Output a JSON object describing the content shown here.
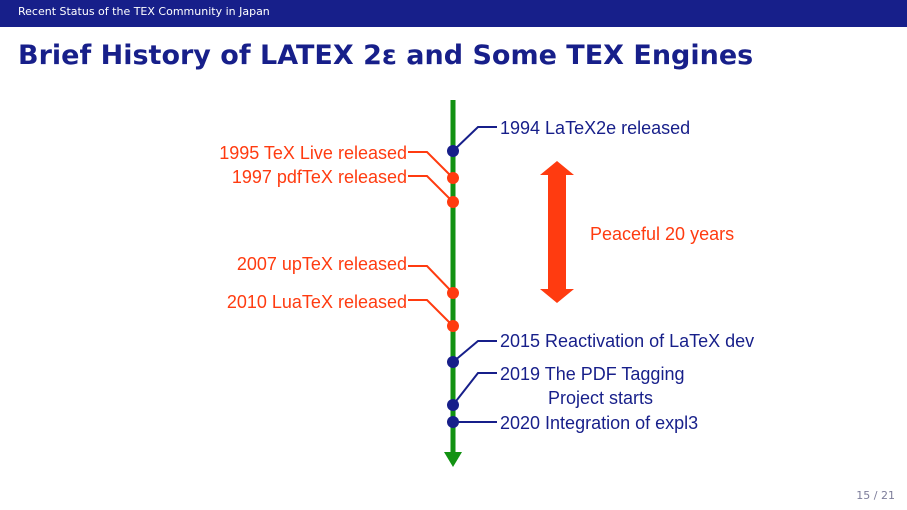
{
  "header": {
    "text": "Recent Status of the TEX Community in Japan"
  },
  "title": "Brief History of LATEX 2ε and Some TEX Engines",
  "colors": {
    "header": "#171f8a",
    "timeline": "#129212",
    "blue": "#171f8a",
    "red": "#ff3b10"
  },
  "timeline": {
    "left_events": [
      {
        "text": "1995 TeX Live released"
      },
      {
        "text": "1997 pdfTeX released"
      },
      {
        "text": "2007 upTeX released"
      },
      {
        "text": "2010 LuaTeX released"
      }
    ],
    "right_events": [
      {
        "text": "1994 LaTeX2e released"
      },
      {
        "text": "2015 Reactivation of LaTeX dev"
      },
      {
        "text": "2019 The PDF Tagging"
      },
      {
        "text": "Project starts"
      },
      {
        "text": "2020 Integration of expl3"
      }
    ],
    "span_label": "Peaceful 20 years"
  },
  "page_number": "15 / 21"
}
